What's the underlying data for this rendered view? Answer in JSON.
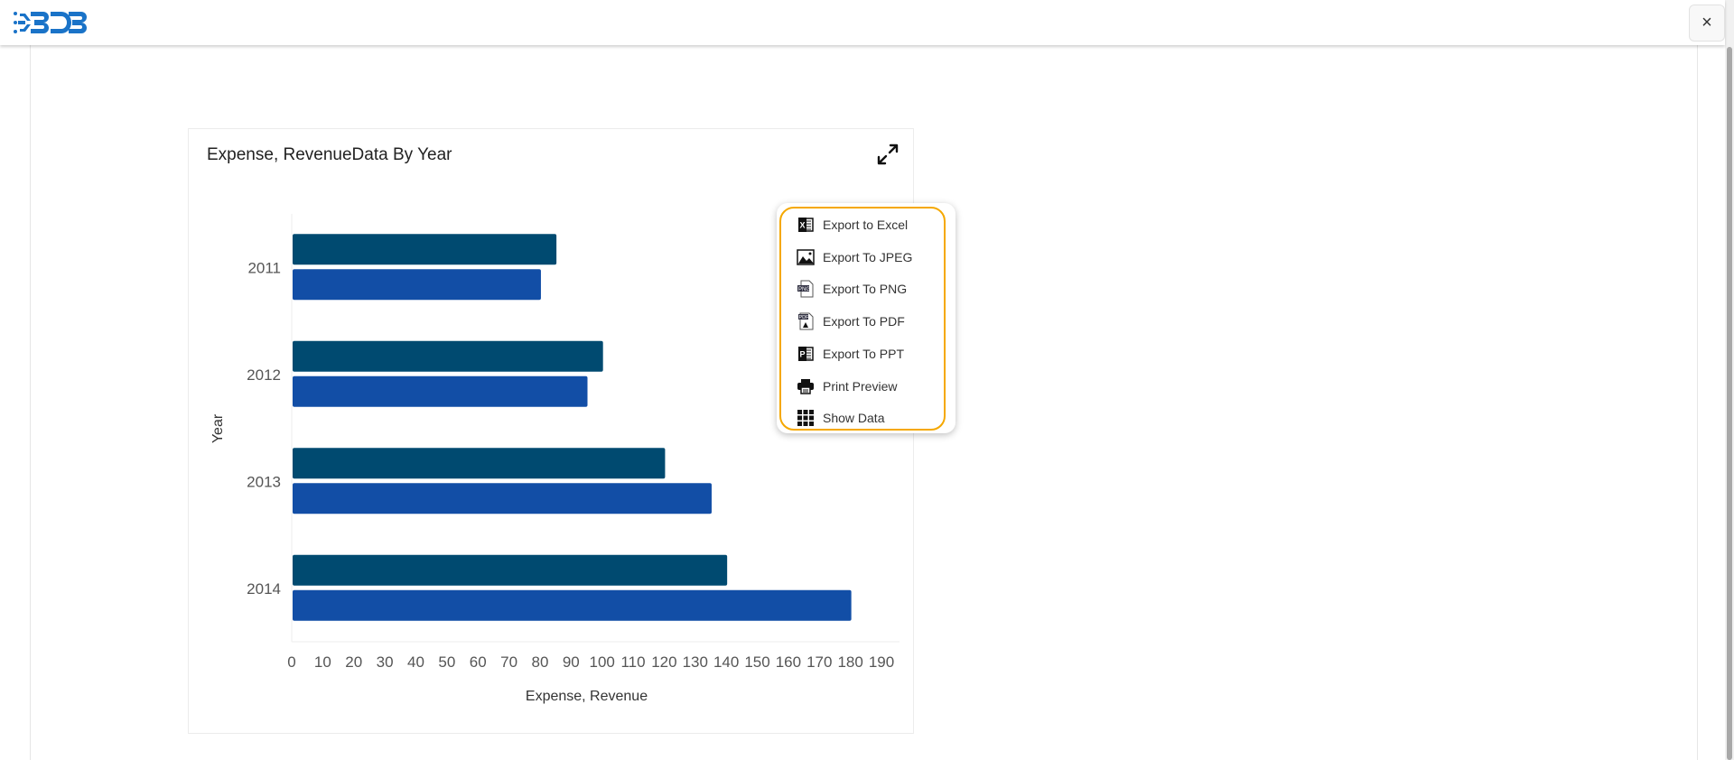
{
  "header": {
    "logo_text": "BDB",
    "close_label": "×"
  },
  "card": {
    "title": "Expense, RevenueData By Year",
    "expand_icon": "expand-icon"
  },
  "menu": {
    "items": [
      {
        "label": "Export to Excel",
        "icon": "excel-icon"
      },
      {
        "label": "Export To JPEG",
        "icon": "image-icon"
      },
      {
        "label": "Export To PNG",
        "icon": "png-file-icon"
      },
      {
        "label": "Export To PDF",
        "icon": "pdf-file-icon"
      },
      {
        "label": "Export To PPT",
        "icon": "powerpoint-icon"
      },
      {
        "label": "Print Preview",
        "icon": "printer-icon"
      },
      {
        "label": "Show Data",
        "icon": "grid-icon"
      }
    ],
    "border_color": "#f5a800"
  },
  "chart_data": {
    "type": "bar",
    "orientation": "horizontal",
    "title": "Expense, RevenueData By Year",
    "xlabel": "Expense, Revenue",
    "ylabel": "Year",
    "categories": [
      "2011",
      "2012",
      "2013",
      "2014"
    ],
    "series": [
      {
        "values": [
          85,
          100,
          120,
          140
        ],
        "color": "#004a70"
      },
      {
        "values": [
          80,
          95,
          135,
          180
        ],
        "color": "#124ea6"
      }
    ],
    "xlim": [
      0,
      190
    ],
    "xticks": [
      "0",
      "10",
      "20",
      "30",
      "40",
      "50",
      "60",
      "70",
      "80",
      "90",
      "100",
      "110",
      "120",
      "130",
      "140",
      "150",
      "160",
      "170",
      "180",
      "190"
    ],
    "grid": false,
    "legend": "none"
  }
}
